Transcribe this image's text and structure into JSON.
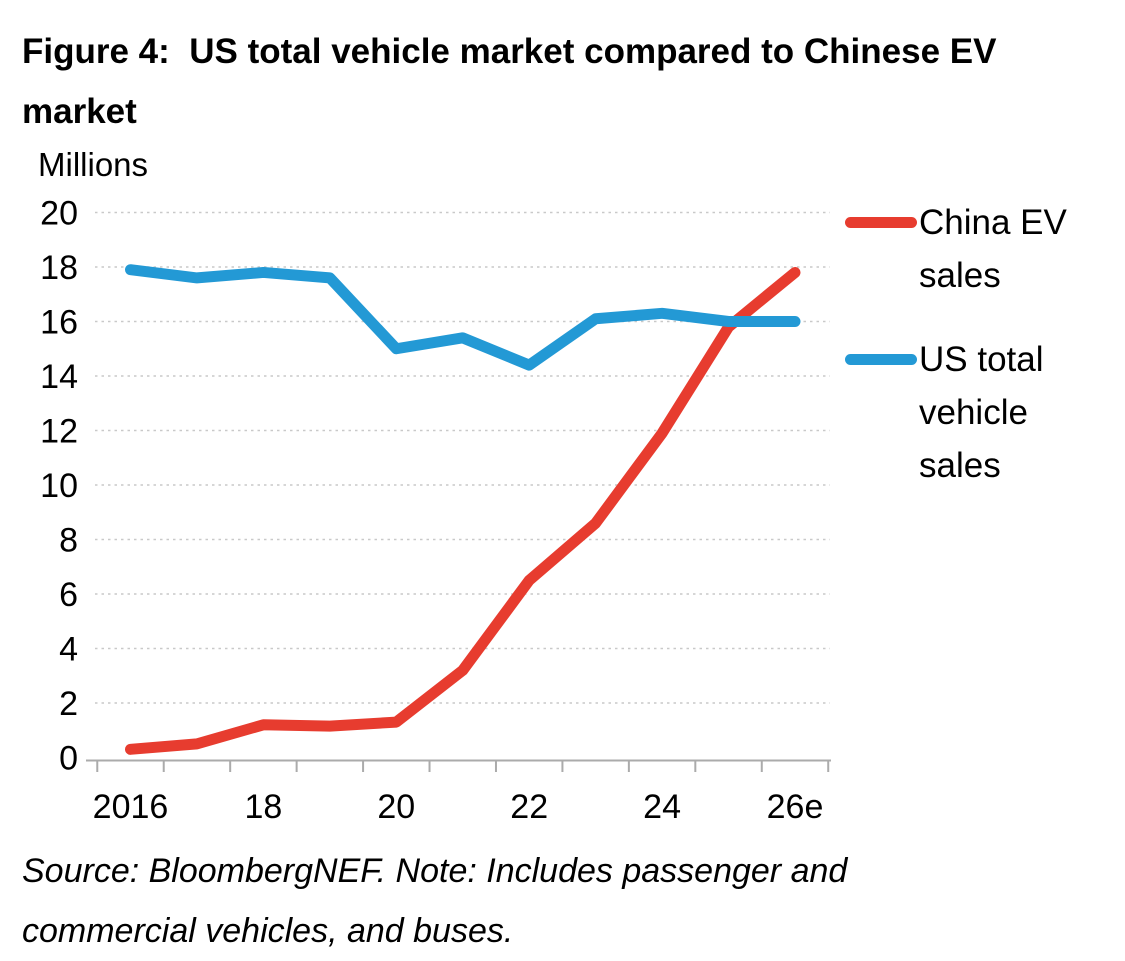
{
  "title": "Figure 4:  US total vehicle market compared to Chinese EV market",
  "source_note": "Source: BloombergNEF. Note: Includes passenger and commercial vehicles, and buses.",
  "legend": {
    "items": [
      {
        "label": "China EV sales",
        "color": "#e73c2f"
      },
      {
        "label": "US total vehicle sales",
        "color": "#2399d5"
      }
    ]
  },
  "chart_data": {
    "type": "line",
    "title": "Figure 4: US total vehicle market compared to Chinese EV market",
    "ylabel": "Millions",
    "xlabel": "",
    "ylim": [
      0,
      20
    ],
    "ytick_step": 2,
    "grid": true,
    "legend_position": "right",
    "x": [
      2016,
      2017,
      2018,
      2019,
      2020,
      2021,
      2022,
      2023,
      2024,
      2025,
      2026
    ],
    "x_ticks": [
      {
        "pos": 2016,
        "label": "2016"
      },
      {
        "pos": 2018,
        "label": "18"
      },
      {
        "pos": 2020,
        "label": "20"
      },
      {
        "pos": 2022,
        "label": "22"
      },
      {
        "pos": 2024,
        "label": "24"
      },
      {
        "pos": 2026,
        "label": "26e"
      }
    ],
    "series": [
      {
        "id": "china-ev-sales",
        "name": "China EV sales",
        "color": "#e73c2f",
        "values": [
          0.3,
          0.5,
          1.2,
          1.15,
          1.3,
          3.2,
          6.5,
          8.6,
          11.9,
          15.8,
          17.8
        ]
      },
      {
        "id": "us-total-vehicle-sales",
        "name": "US total vehicle sales",
        "color": "#2399d5",
        "values": [
          17.9,
          17.6,
          17.8,
          17.6,
          15.0,
          15.4,
          14.4,
          16.1,
          16.3,
          16.0,
          16.0
        ]
      }
    ]
  }
}
